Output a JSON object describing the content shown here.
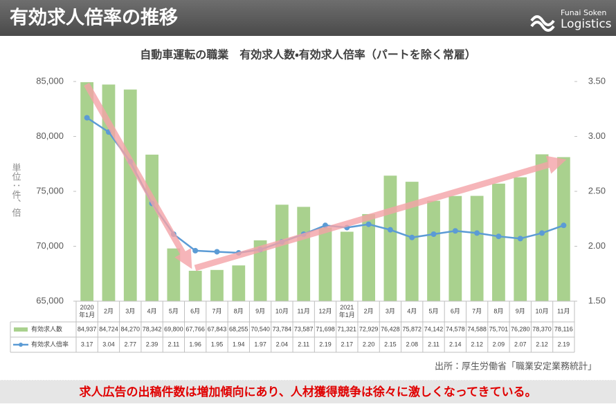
{
  "header": {
    "title": "有効求人倍率の推移",
    "logo_top": "Funai Soken",
    "logo_bottom": "Logistics"
  },
  "chart_data": {
    "type": "bar_line",
    "title": "自動車運転の職業　有効求人数・有効求人倍率（パートを除く常雇）",
    "y_label": "単位：件、倍",
    "categories": [
      "2020\n年1月",
      "2月",
      "3月",
      "4月",
      "5月",
      "6月",
      "7月",
      "8月",
      "9月",
      "10月",
      "11月",
      "12月",
      "2021\n年1月",
      "2月",
      "3月",
      "4月",
      "5月",
      "6月",
      "7月",
      "8月",
      "9月",
      "10月",
      "11月"
    ],
    "series": [
      {
        "name": "有効求人数",
        "color": "#a9d18e",
        "axis": "y",
        "values": [
          84937,
          84724,
          84270,
          78342,
          69800,
          67766,
          67843,
          68255,
          70540,
          73784,
          73587,
          71698,
          71321,
          72929,
          76428,
          75872,
          74142,
          74578,
          74588,
          75701,
          76280,
          78370,
          78116
        ],
        "value_labels": [
          "84,937",
          "84,724",
          "84,270",
          "78,342",
          "69,800",
          "67,766",
          "67,843",
          "68,255",
          "70,540",
          "73,784",
          "73,587",
          "71,698",
          "71,321",
          "72,929",
          "76,428",
          "75,872",
          "74,142",
          "74,578",
          "74,588",
          "75,701",
          "76,280",
          "78,370",
          "78,116"
        ]
      },
      {
        "name": "有効求人倍率",
        "color": "#5b9bd5",
        "axis": "y2",
        "values": [
          3.17,
          3.04,
          2.77,
          2.39,
          2.11,
          1.96,
          1.95,
          1.94,
          1.97,
          2.04,
          2.11,
          2.19,
          2.17,
          2.2,
          2.15,
          2.08,
          2.11,
          2.14,
          2.12,
          2.09,
          2.07,
          2.12,
          2.19
        ],
        "value_labels": [
          "3.17",
          "3.04",
          "2.77",
          "2.39",
          "2.11",
          "1.96",
          "1.95",
          "1.94",
          "1.97",
          "2.04",
          "2.11",
          "2.19",
          "2.17",
          "2.20",
          "2.15",
          "2.08",
          "2.11",
          "2.14",
          "2.12",
          "2.09",
          "2.07",
          "2.12",
          "2.19"
        ]
      }
    ],
    "ylim": [
      65000,
      85000
    ],
    "yticks": [
      {
        "value": 65000,
        "label": "65,000"
      },
      {
        "value": 70000,
        "label": "70,000"
      },
      {
        "value": 75000,
        "label": "75,000"
      },
      {
        "value": 80000,
        "label": "80,000"
      },
      {
        "value": 85000,
        "label": "85,000"
      }
    ],
    "y2lim": [
      1.5,
      3.5
    ],
    "y2ticks": [
      {
        "value": 1.5,
        "label": "1.50"
      },
      {
        "value": 2,
        "label": "2.00"
      },
      {
        "value": 2.5,
        "label": "2.50"
      },
      {
        "value": 3,
        "label": "3.00"
      },
      {
        "value": 3.5,
        "label": "3.50"
      }
    ],
    "grid": false,
    "source": "出所：厚生労働省「職業安定業務統計」"
  },
  "footer": {
    "message": "求人広告の出稿件数は増加傾向にあり、人材獲得競争は徐々に激しくなってきている。"
  }
}
